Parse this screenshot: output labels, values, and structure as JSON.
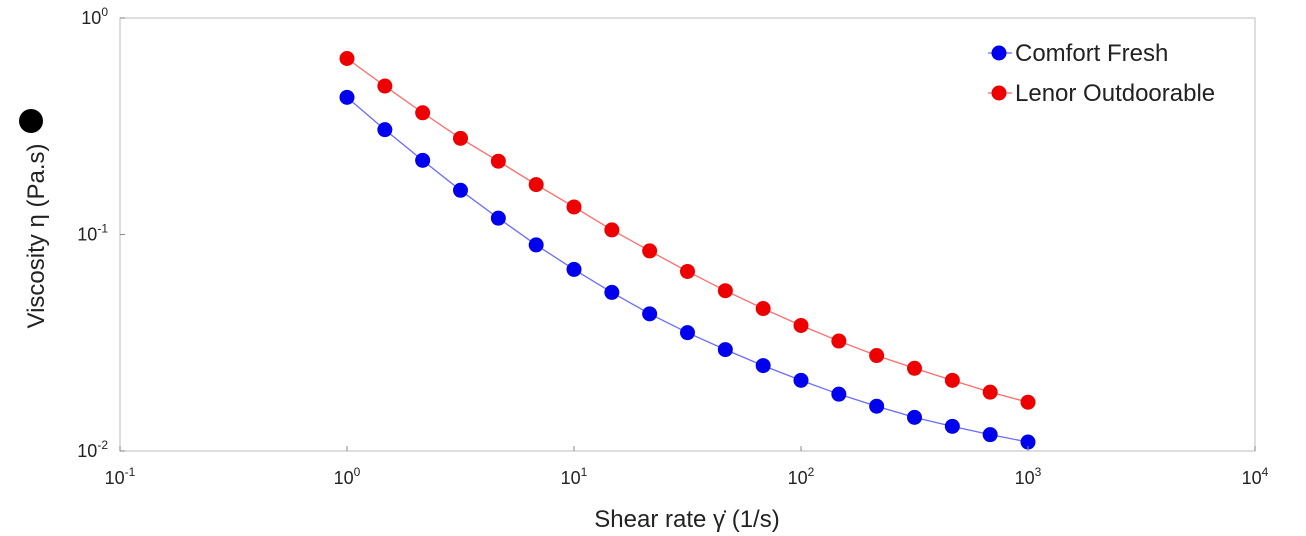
{
  "chart_data": {
    "type": "scatter",
    "x_scale": "log",
    "y_scale": "log",
    "xlabel": "Shear rate γ̇ (1/s)",
    "ylabel": "Viscosity η (Pa.s)",
    "ylabel_marker": "●",
    "xlim": [
      0.1,
      10000
    ],
    "ylim": [
      0.01,
      1
    ],
    "x_ticks": [
      {
        "value": 0.1,
        "base": "10",
        "exp": "-1"
      },
      {
        "value": 1,
        "base": "10",
        "exp": "0"
      },
      {
        "value": 10,
        "base": "10",
        "exp": "1"
      },
      {
        "value": 100,
        "base": "10",
        "exp": "2"
      },
      {
        "value": 1000,
        "base": "10",
        "exp": "3"
      },
      {
        "value": 10000,
        "base": "10",
        "exp": "4"
      }
    ],
    "y_ticks": [
      {
        "value": 1,
        "base": "10",
        "exp": "0"
      },
      {
        "value": 0.1,
        "base": "10",
        "exp": "-1"
      },
      {
        "value": 0.01,
        "base": "10",
        "exp": "-2"
      }
    ],
    "grid": false,
    "legend_position": "top-right",
    "series": [
      {
        "name": "Comfort Fresh",
        "color": "#0000ee",
        "line_color": "#6b6bff",
        "x": [
          1,
          1.468,
          2.154,
          3.162,
          4.642,
          6.813,
          10,
          14.68,
          21.54,
          31.62,
          46.42,
          68.13,
          100,
          146.8,
          215.4,
          316.2,
          464.2,
          681.3,
          1000
        ],
        "y": [
          0.43,
          0.305,
          0.22,
          0.16,
          0.119,
          0.0895,
          0.069,
          0.054,
          0.043,
          0.0352,
          0.0294,
          0.0248,
          0.0212,
          0.0183,
          0.0161,
          0.0143,
          0.013,
          0.0119,
          0.011
        ]
      },
      {
        "name": "Lenor Outdoorable",
        "color": "#ee0000",
        "line_color": "#ff6b6b",
        "x": [
          1,
          1.468,
          2.154,
          3.162,
          4.642,
          6.813,
          10,
          14.68,
          21.54,
          31.62,
          46.42,
          68.13,
          100,
          146.8,
          215.4,
          316.2,
          464.2,
          681.3,
          1000
        ],
        "y": [
          0.65,
          0.485,
          0.365,
          0.278,
          0.218,
          0.17,
          0.134,
          0.105,
          0.084,
          0.0675,
          0.055,
          0.0455,
          0.038,
          0.0322,
          0.0276,
          0.0241,
          0.0212,
          0.0187,
          0.0168
        ]
      }
    ]
  }
}
